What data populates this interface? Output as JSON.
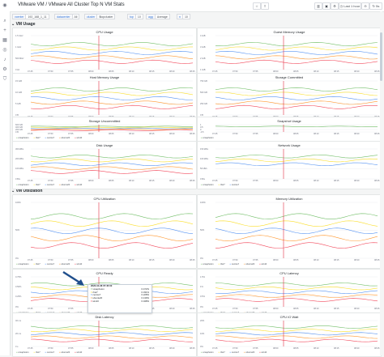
{
  "header": {
    "title": "VMware VM / VMware All Cluster Top N VM Stats",
    "time_range": "Last 1 hour",
    "refresh": "5s"
  },
  "variables": [
    {
      "label": "vcenter",
      "value": "192_168_1_11"
    },
    {
      "label": "datacenter",
      "value": "All"
    },
    {
      "label": "cluster",
      "value": "$topcluster"
    },
    {
      "label": "top",
      "value": "10"
    },
    {
      "label": "agg",
      "value": "Average"
    },
    {
      "label": "n",
      "value": "10"
    }
  ],
  "sections": {
    "vm_usage": "VM Usage",
    "vm_utilization": "VM Utilization"
  },
  "panels": [
    {
      "id": "cpu-usage",
      "title": "CPU Usage",
      "yticks": [
        "1.5 GHz",
        "1 GHz",
        "500 MHz",
        "0 Hz"
      ],
      "legend": [
        "vcsaphoton",
        "rhel7",
        "centos7",
        "ubuntu20",
        "win10"
      ]
    },
    {
      "id": "guest-memory-usage",
      "title": "Guest Memory Usage",
      "yticks": [
        "4 GiB",
        "3 GiB",
        "2 GiB",
        "1 GiB"
      ],
      "legend": [
        "vcsaphoton",
        "rhel7",
        "centos7",
        "ubuntu20",
        "win10"
      ]
    },
    {
      "id": "host-memory-usage",
      "title": "Host Memory Usage",
      "yticks": [
        "15 GiB",
        "10 GiB",
        "5 GiB",
        "0 B"
      ],
      "legend": [
        "vcsaphoton",
        "rhel7",
        "centos7",
        "ubuntu20",
        "win10"
      ]
    },
    {
      "id": "storage-committed",
      "title": "Storage Committed",
      "yticks": [
        "750 GB",
        "500 GB",
        "250 GB",
        "0 B"
      ],
      "legend": [
        "vcsaphoton",
        "rhel7",
        "centos7",
        "ubuntu20",
        "win10"
      ]
    },
    {
      "id": "storage-uncommitted",
      "title": "Storage Uncommitted",
      "yticks": [
        "600 GB",
        "400 GB",
        "200 GB",
        "0 B"
      ],
      "legend": [
        "vcsaphoton",
        "rhel7",
        "centos7",
        "ubuntu20",
        "win10"
      ]
    },
    {
      "id": "snapshot-usage",
      "title": "Snapshot Usage",
      "yticks": [
        "1",
        "0.5",
        "0",
        "-0.5"
      ],
      "legend": [
        "vcsaphoton"
      ]
    },
    {
      "id": "disk-usage",
      "title": "Disk Usage",
      "yticks": [
        "300 kB/s",
        "200 kB/s",
        "100 kB/s",
        "0 B/s"
      ],
      "legend": [
        "vcsaphoton",
        "rhel7",
        "centos7",
        "ubuntu20",
        "win10"
      ]
    },
    {
      "id": "network-usage",
      "title": "Network Usage",
      "yticks": [
        "150 kB/s",
        "100 kB/s",
        "50 kB/s",
        "0 B/s"
      ],
      "legend": [
        "vcsaphoton",
        "rhel7",
        "centos7"
      ]
    },
    {
      "id": "cpu-utilization",
      "title": "CPU Utilization",
      "yticks": [
        "100%",
        "50%",
        "0%"
      ],
      "legend": [
        "vcsaphoton",
        "rhel7",
        "centos7",
        "ubuntu20",
        "win10"
      ]
    },
    {
      "id": "memory-utilization",
      "title": "Memory Utilization",
      "yticks": [
        "100%",
        "50%",
        "0%"
      ],
      "legend": [
        "vcsaphoton",
        "rhel7",
        "centos7",
        "ubuntu20",
        "win10"
      ]
    },
    {
      "id": "cpu-ready",
      "title": "CPU Ready",
      "yticks": [
        "0.75%",
        "0.50%",
        "0.25%",
        "0%"
      ],
      "legend": [
        "vcsaphoton",
        "rhel7",
        "centos7",
        "ubuntu20",
        "win10"
      ]
    },
    {
      "id": "cpu-latency",
      "title": "CPU Latency",
      "yticks": [
        "1.5%",
        "1%",
        "0.5%",
        "0%"
      ],
      "legend": [
        "vcsaphoton",
        "rhel7",
        "centos7",
        "ubuntu20",
        "win10"
      ]
    },
    {
      "id": "disk-latency",
      "title": "Disk Latency",
      "yticks": [
        "40 ms",
        "20 ms",
        "0 s"
      ],
      "legend": [
        "vcsaphoton",
        "rhel7",
        "centos7",
        "ubuntu20",
        "win10"
      ]
    },
    {
      "id": "cpu-io-wait",
      "title": "CPU IO Wait",
      "yticks": [
        "20%",
        "10%",
        "0%"
      ],
      "legend": [
        "vcsaphoton",
        "rhel7",
        "centos7",
        "ubuntu20",
        "win10"
      ]
    }
  ],
  "xticks": [
    "07:45",
    "07:50",
    "07:55",
    "08:00",
    "08:05",
    "08:10",
    "08:15",
    "08:20",
    "08:25"
  ],
  "tooltip": {
    "time": "2022-04-08 07:45:00",
    "rows": [
      {
        "name": "vcsaphoton",
        "value": "0.472%"
      },
      {
        "name": "rhel7",
        "value": "0.331%"
      },
      {
        "name": "centos7",
        "value": "0.228%"
      },
      {
        "name": "ubuntu20",
        "value": "0.139%"
      },
      {
        "name": "win10",
        "value": "0.048%"
      }
    ]
  },
  "colors": {
    "green": "#73bf69",
    "yellow": "#fade2a",
    "blue": "#5794f2",
    "orange": "#ff9830",
    "red": "#f2495c",
    "purple": "#b877d9",
    "teal": "#8ab8ff"
  }
}
